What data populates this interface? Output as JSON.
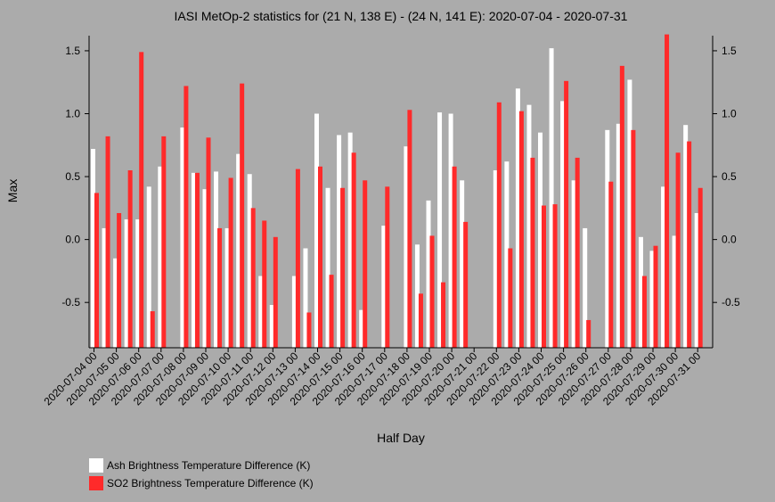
{
  "chart_data": {
    "type": "bar",
    "title": "IASI MetOp-2 statistics for (21 N, 138 E) - (24 N, 141 E): 2020-07-04 - 2020-07-31",
    "xlabel": "Half Day",
    "ylabel": "Max",
    "ylim": [
      -0.86,
      1.62
    ],
    "yticks": [
      -0.5,
      0.0,
      0.5,
      1.0,
      1.5
    ],
    "ytick_labels": [
      "-0.5",
      "0.0",
      "0.5",
      "1.0",
      "1.5"
    ],
    "categories": [
      "2020-07-04 00",
      "2020-07-04 12",
      "2020-07-05 00",
      "2020-07-05 12",
      "2020-07-06 00",
      "2020-07-06 12",
      "2020-07-07 00",
      "2020-07-07 12",
      "2020-07-08 00",
      "2020-07-08 12",
      "2020-07-09 00",
      "2020-07-09 12",
      "2020-07-10 00",
      "2020-07-10 12",
      "2020-07-11 00",
      "2020-07-11 12",
      "2020-07-12 00",
      "2020-07-12 12",
      "2020-07-13 00",
      "2020-07-13 12",
      "2020-07-14 00",
      "2020-07-14 12",
      "2020-07-15 00",
      "2020-07-15 12",
      "2020-07-16 00",
      "2020-07-16 12",
      "2020-07-17 00",
      "2020-07-17 12",
      "2020-07-18 00",
      "2020-07-18 12",
      "2020-07-19 00",
      "2020-07-19 12",
      "2020-07-20 00",
      "2020-07-20 12",
      "2020-07-21 00",
      "2020-07-21 12",
      "2020-07-22 00",
      "2020-07-22 12",
      "2020-07-23 00",
      "2020-07-23 12",
      "2020-07-24 00",
      "2020-07-24 12",
      "2020-07-25 00",
      "2020-07-25 12",
      "2020-07-26 00",
      "2020-07-26 12",
      "2020-07-27 00",
      "2020-07-27 12",
      "2020-07-28 00",
      "2020-07-28 12",
      "2020-07-29 00",
      "2020-07-29 12",
      "2020-07-30 00",
      "2020-07-30 12",
      "2020-07-31 00"
    ],
    "tick_labels": [
      "2020-07-04 00",
      "2020-07-05 00",
      "2020-07-06 00",
      "2020-07-07 00",
      "2020-07-08 00",
      "2020-07-09 00",
      "2020-07-10 00",
      "2020-07-11 00",
      "2020-07-12 00",
      "2020-07-13 00",
      "2020-07-14 00",
      "2020-07-15 00",
      "2020-07-16 00",
      "2020-07-17 00",
      "2020-07-18 00",
      "2020-07-19 00",
      "2020-07-20 00",
      "2020-07-21 00",
      "2020-07-22 00",
      "2020-07-23 00",
      "2020-07-24 00",
      "2020-07-25 00",
      "2020-07-26 00",
      "2020-07-27 00",
      "2020-07-28 00",
      "2020-07-29 00",
      "2020-07-30 00",
      "2020-07-31 00"
    ],
    "series": [
      {
        "name": "Ash Brightness Temperature Difference (K)",
        "color": "#ffffff",
        "values": [
          0.72,
          0.09,
          -0.15,
          0.16,
          0.16,
          0.42,
          0.58,
          null,
          0.89,
          0.53,
          0.4,
          0.54,
          0.09,
          0.68,
          0.52,
          -0.29,
          -0.52,
          null,
          -0.29,
          -0.07,
          1.0,
          0.41,
          0.83,
          0.85,
          -0.56,
          null,
          0.11,
          null,
          0.74,
          -0.04,
          0.31,
          1.01,
          1.0,
          0.47,
          null,
          null,
          0.55,
          0.62,
          1.2,
          1.07,
          0.85,
          1.52,
          1.1,
          0.47,
          0.09,
          null,
          0.87,
          0.92,
          1.27,
          0.02,
          -0.09,
          0.42,
          0.03,
          0.91,
          0.21
        ]
      },
      {
        "name": "SO2 Brightness Temperature Difference (K)",
        "color": "#ff2a2a",
        "values": [
          0.37,
          0.82,
          0.21,
          0.55,
          1.49,
          -0.57,
          0.82,
          null,
          1.22,
          0.53,
          0.81,
          0.09,
          0.49,
          1.24,
          0.25,
          0.15,
          0.02,
          null,
          0.56,
          -0.58,
          0.58,
          -0.28,
          0.41,
          0.69,
          0.47,
          null,
          0.42,
          null,
          1.03,
          -0.43,
          0.03,
          -0.34,
          0.58,
          0.14,
          null,
          null,
          1.09,
          -0.07,
          1.02,
          0.65,
          0.27,
          0.28,
          1.26,
          0.65,
          -0.64,
          null,
          0.46,
          1.38,
          0.87,
          -0.29,
          -0.05,
          1.63,
          0.69,
          0.78,
          0.41
        ]
      }
    ],
    "legend_position": "bottom-left",
    "grid": false
  }
}
